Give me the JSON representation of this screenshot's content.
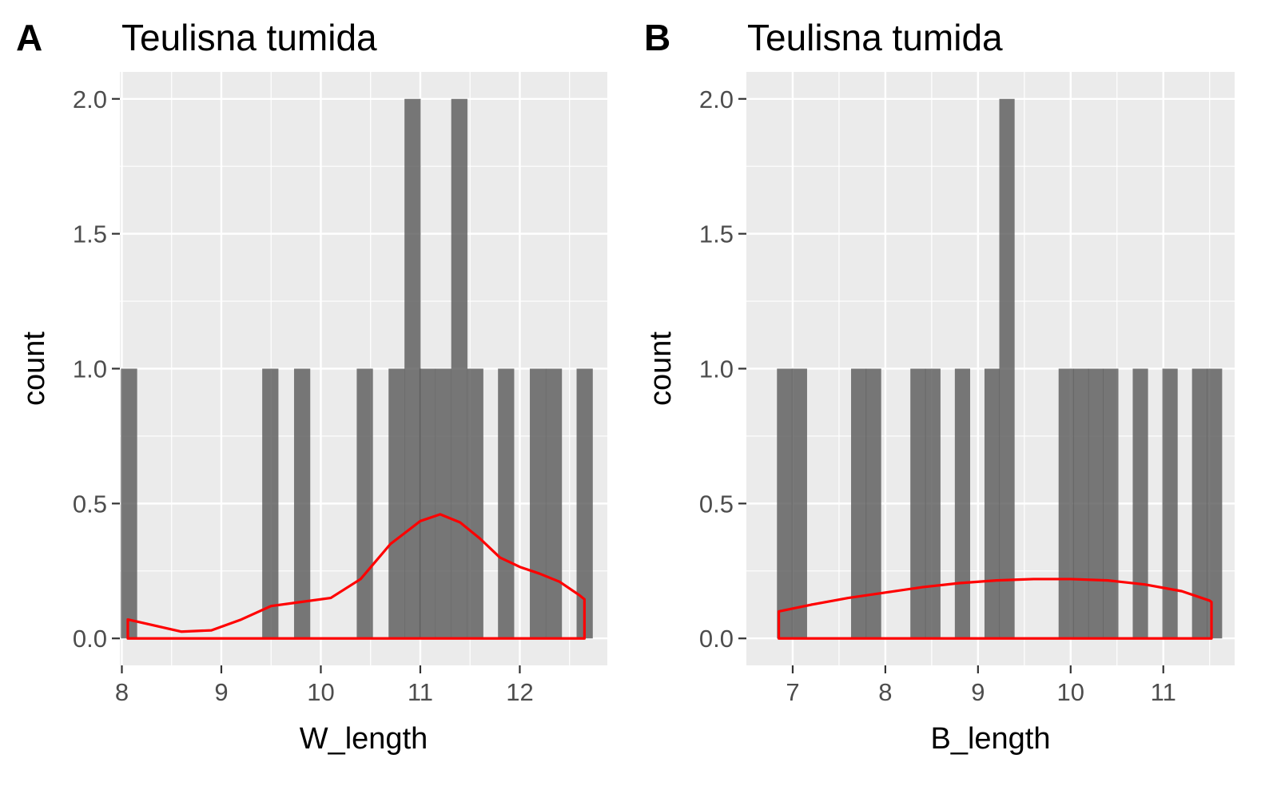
{
  "figure": {
    "panels": [
      {
        "tag": "A",
        "chart_data": {
          "type": "bar",
          "title": "Teulisna tumida",
          "xlabel": "W_length",
          "ylabel": "count",
          "xlim": [
            7.98,
            12.88
          ],
          "ylim": [
            -0.1,
            2.1
          ],
          "xticks": [
            8,
            9,
            10,
            11,
            12
          ],
          "yticks": [
            0.0,
            0.5,
            1.0,
            1.5,
            2.0
          ],
          "xtick_labels": [
            "8",
            "9",
            "10",
            "11",
            "12"
          ],
          "ytick_labels": [
            "0.0",
            "0.5",
            "1.0",
            "1.5",
            "2.0"
          ],
          "grid": true,
          "bin_width": 0.158,
          "bins": [
            {
              "x": 8.07,
              "count": 1
            },
            {
              "x": 9.49,
              "count": 1
            },
            {
              "x": 9.81,
              "count": 1
            },
            {
              "x": 10.44,
              "count": 1
            },
            {
              "x": 10.76,
              "count": 1
            },
            {
              "x": 10.92,
              "count": 2
            },
            {
              "x": 11.07,
              "count": 1
            },
            {
              "x": 11.23,
              "count": 1
            },
            {
              "x": 11.39,
              "count": 2
            },
            {
              "x": 11.55,
              "count": 1
            },
            {
              "x": 11.86,
              "count": 1
            },
            {
              "x": 12.18,
              "count": 1
            },
            {
              "x": 12.34,
              "count": 1
            },
            {
              "x": 12.65,
              "count": 1
            }
          ],
          "density": {
            "color": "#ff0000",
            "points": [
              [
                8.06,
                0.07
              ],
              [
                8.3,
                0.05
              ],
              [
                8.6,
                0.025
              ],
              [
                8.9,
                0.03
              ],
              [
                9.2,
                0.07
              ],
              [
                9.5,
                0.12
              ],
              [
                9.8,
                0.135
              ],
              [
                10.1,
                0.15
              ],
              [
                10.4,
                0.22
              ],
              [
                10.7,
                0.35
              ],
              [
                11.0,
                0.435
              ],
              [
                11.2,
                0.46
              ],
              [
                11.4,
                0.43
              ],
              [
                11.6,
                0.37
              ],
              [
                11.8,
                0.3
              ],
              [
                12.0,
                0.265
              ],
              [
                12.2,
                0.24
              ],
              [
                12.4,
                0.21
              ],
              [
                12.6,
                0.16
              ],
              [
                12.65,
                0.145
              ]
            ]
          }
        }
      },
      {
        "tag": "B",
        "chart_data": {
          "type": "bar",
          "title": "Teulisna tumida",
          "xlabel": "B_length",
          "ylabel": "count",
          "xlim": [
            6.5,
            11.77
          ],
          "ylim": [
            -0.1,
            2.1
          ],
          "xticks": [
            7,
            8,
            9,
            10,
            11
          ],
          "yticks": [
            0.0,
            0.5,
            1.0,
            1.5,
            2.0
          ],
          "xtick_labels": [
            "7",
            "8",
            "9",
            "10",
            "11"
          ],
          "ytick_labels": [
            "0.0",
            "0.5",
            "1.0",
            "1.5",
            "2.0"
          ],
          "grid": true,
          "bin_width": 0.16,
          "bins": [
            {
              "x": 6.91,
              "count": 1
            },
            {
              "x": 7.07,
              "count": 1
            },
            {
              "x": 7.71,
              "count": 1
            },
            {
              "x": 7.87,
              "count": 1
            },
            {
              "x": 8.35,
              "count": 1
            },
            {
              "x": 8.51,
              "count": 1
            },
            {
              "x": 8.83,
              "count": 1
            },
            {
              "x": 9.15,
              "count": 1
            },
            {
              "x": 9.31,
              "count": 2
            },
            {
              "x": 9.95,
              "count": 1
            },
            {
              "x": 10.11,
              "count": 1
            },
            {
              "x": 10.27,
              "count": 1
            },
            {
              "x": 10.43,
              "count": 1
            },
            {
              "x": 10.75,
              "count": 1
            },
            {
              "x": 11.07,
              "count": 1
            },
            {
              "x": 11.39,
              "count": 1
            },
            {
              "x": 11.55,
              "count": 1
            }
          ],
          "density": {
            "color": "#ff0000",
            "points": [
              [
                6.85,
                0.1
              ],
              [
                7.2,
                0.125
              ],
              [
                7.6,
                0.15
              ],
              [
                8.0,
                0.17
              ],
              [
                8.4,
                0.19
              ],
              [
                8.8,
                0.205
              ],
              [
                9.2,
                0.215
              ],
              [
                9.6,
                0.22
              ],
              [
                10.0,
                0.22
              ],
              [
                10.4,
                0.215
              ],
              [
                10.8,
                0.2
              ],
              [
                11.2,
                0.175
              ],
              [
                11.5,
                0.14
              ],
              [
                11.52,
                0.135
              ]
            ]
          }
        }
      }
    ]
  }
}
